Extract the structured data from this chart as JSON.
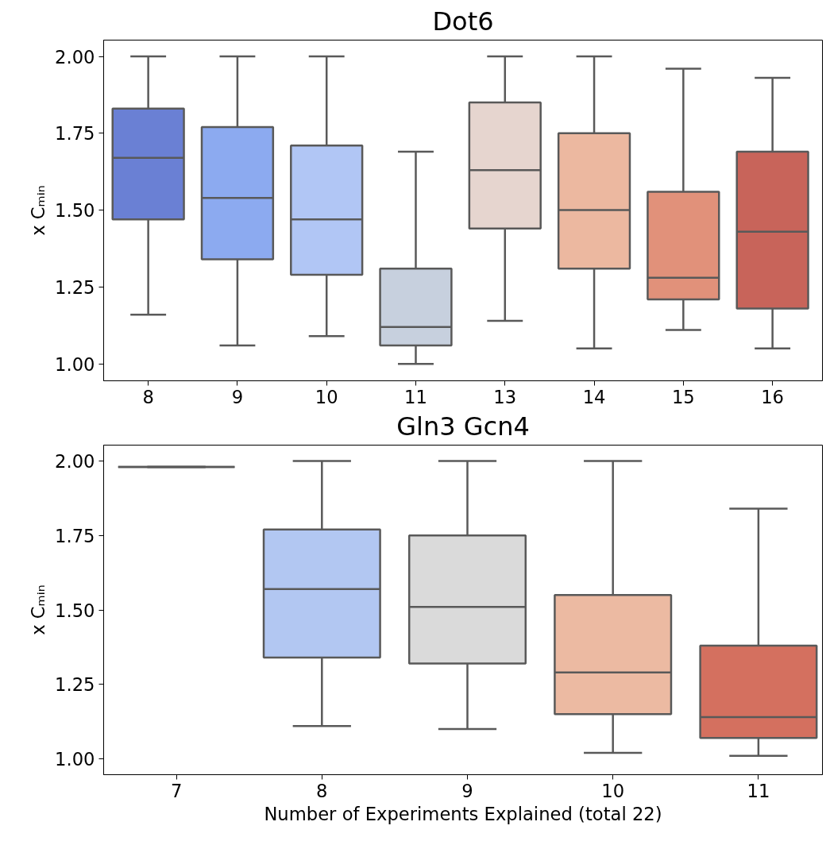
{
  "chart_data": [
    {
      "type": "box",
      "title": "Dot6",
      "ylabel": "x Cₘᵢₙ",
      "categories": [
        "8",
        "9",
        "10",
        "11",
        "13",
        "14",
        "15",
        "16"
      ],
      "colors": [
        "#6a80d4",
        "#8caaf0",
        "#b1c6f5",
        "#c7d0de",
        "#e6d5cf",
        "#ecb8a0",
        "#e1917a",
        "#c8645a"
      ],
      "boxes": [
        {
          "low": 1.16,
          "q1": 1.47,
          "median": 1.67,
          "q3": 1.83,
          "high": 2.0
        },
        {
          "low": 1.06,
          "q1": 1.34,
          "median": 1.54,
          "q3": 1.77,
          "high": 2.0
        },
        {
          "low": 1.09,
          "q1": 1.29,
          "median": 1.47,
          "q3": 1.71,
          "high": 2.0
        },
        {
          "low": 1.0,
          "q1": 1.06,
          "median": 1.12,
          "q3": 1.31,
          "high": 1.69
        },
        {
          "low": 1.14,
          "q1": 1.44,
          "median": 1.63,
          "q3": 1.85,
          "high": 2.0
        },
        {
          "low": 1.05,
          "q1": 1.31,
          "median": 1.5,
          "q3": 1.75,
          "high": 2.0
        },
        {
          "low": 1.11,
          "q1": 1.21,
          "median": 1.28,
          "q3": 1.56,
          "high": 1.96
        },
        {
          "low": 1.05,
          "q1": 1.18,
          "median": 1.43,
          "q3": 1.69,
          "high": 1.93
        }
      ],
      "ylim": [
        0.945,
        2.053
      ],
      "yticks": [
        {
          "value": 1.0,
          "label": "1.00"
        },
        {
          "value": 1.25,
          "label": "1.25"
        },
        {
          "value": 1.5,
          "label": "1.50"
        },
        {
          "value": 1.75,
          "label": "1.75"
        },
        {
          "value": 2.0,
          "label": "2.00"
        }
      ],
      "grid": false
    },
    {
      "type": "box",
      "title": "Gln3 Gcn4",
      "ylabel": "x Cₘᵢₙ",
      "xlabel": "Number of Experiments Explained (total 22)",
      "categories": [
        "7",
        "8",
        "9",
        "10",
        "11"
      ],
      "colors": [
        "#595959",
        "#b2c7f2",
        "#dadada",
        "#ecbaa2",
        "#d4705f"
      ],
      "boxes": [
        {
          "low": 1.98,
          "q1": 1.98,
          "median": 1.98,
          "q3": 1.98,
          "high": 1.98
        },
        {
          "low": 1.11,
          "q1": 1.34,
          "median": 1.57,
          "q3": 1.77,
          "high": 2.0
        },
        {
          "low": 1.1,
          "q1": 1.32,
          "median": 1.51,
          "q3": 1.75,
          "high": 2.0
        },
        {
          "low": 1.02,
          "q1": 1.15,
          "median": 1.29,
          "q3": 1.55,
          "high": 2.0
        },
        {
          "low": 1.01,
          "q1": 1.07,
          "median": 1.14,
          "q3": 1.38,
          "high": 1.84
        }
      ],
      "ylim": [
        0.947,
        2.053
      ],
      "yticks": [
        {
          "value": 1.0,
          "label": "1.00"
        },
        {
          "value": 1.25,
          "label": "1.25"
        },
        {
          "value": 1.5,
          "label": "1.50"
        },
        {
          "value": 1.75,
          "label": "1.75"
        },
        {
          "value": 2.0,
          "label": "2.00"
        }
      ],
      "grid": false
    }
  ]
}
